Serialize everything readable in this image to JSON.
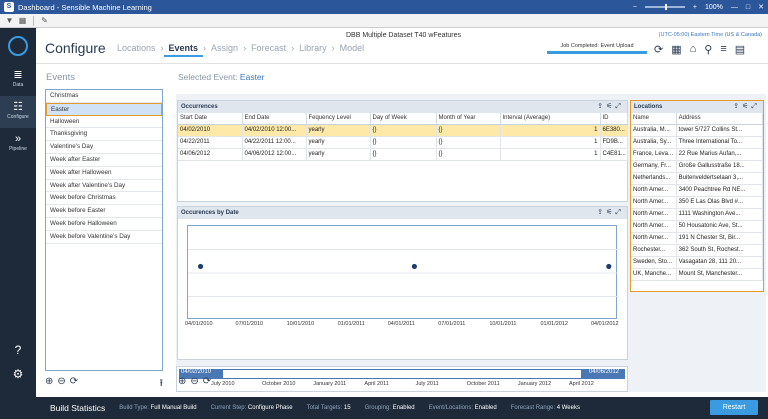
{
  "window": {
    "title": "Dashboard - Sensible Machine Learning",
    "zoom": "100%",
    "controls": [
      "—",
      "□",
      "✕"
    ]
  },
  "toolbar": {
    "icons": [
      "filter-icon",
      "grid-icon",
      "edit-icon"
    ]
  },
  "rail": {
    "items": [
      {
        "label": "Data",
        "icon": "database-icon",
        "glyph": "≣"
      },
      {
        "label": "Configure",
        "icon": "sliders-icon",
        "glyph": "☷"
      },
      {
        "label": "Pipeline",
        "icon": "chevrons-right-icon",
        "glyph": "»"
      }
    ],
    "help_glyph": "?",
    "settings_glyph": "⚙"
  },
  "header": {
    "page_title": "Configure",
    "crumbs": [
      "Locations",
      "Events",
      "Assign",
      "Forecast",
      "Library",
      "Model"
    ],
    "active_crumb": "Events",
    "dataset": "DBB Multiple Dataset T40 wFeatures",
    "job_status": "Job Completed: Event Upload",
    "timezone": "(UTC-05:00) Eastern Time (US & Canada)"
  },
  "events": {
    "title": "Events",
    "items": [
      "Christmas",
      "Easter",
      "Halloween",
      "Thanksgiving",
      "Valentine's Day",
      "Week after Easter",
      "Week after Halloween",
      "Week after Valentine's Day",
      "Week before Christmas",
      "Week before Easter",
      "Week before Halloween",
      "Week before Valentine's Day"
    ],
    "selected": "Easter"
  },
  "selected_event": {
    "label": "Selected Event:",
    "value": "Easter"
  },
  "occurrences": {
    "title": "Occurrences",
    "columns": [
      "Start Date",
      "End Date",
      "Fequency Level",
      "Day of Week",
      "Month of Year",
      "Interval (Average)",
      "ID"
    ],
    "rows": [
      [
        "04/02/2010",
        "04/02/2010 12:00...",
        "yearly",
        "{}",
        "{}",
        "1",
        "6E380..."
      ],
      [
        "04/22/2011",
        "04/22/2011 12:00...",
        "yearly",
        "{}",
        "{}",
        "1",
        "FD9B..."
      ],
      [
        "04/06/2012",
        "04/06/2012 12:00...",
        "yearly",
        "{}",
        "{}",
        "1",
        "C4E81..."
      ]
    ]
  },
  "locations": {
    "title": "Locations",
    "columns": [
      "Name",
      "Address"
    ],
    "rows": [
      [
        "Australia, M...",
        "tower 5/727 Collins St..."
      ],
      [
        "Australia, Sy...",
        "Three International To..."
      ],
      [
        "France, Leva...",
        "22 Rue Marius Aufan,..."
      ],
      [
        "Germany, Fr...",
        "Große Gallusstraße 18..."
      ],
      [
        "Netherlands...",
        "Buitenveldertselaan 3,..."
      ],
      [
        "North Amer...",
        "3400 Peachtree Rd NE..."
      ],
      [
        "North Amer...",
        "350 E Las Olas Blvd #..."
      ],
      [
        "North Amer...",
        "1111 Washington Ave..."
      ],
      [
        "North Amer...",
        "50 Housatonic Ave, St..."
      ],
      [
        "North Amer...",
        "191 N Chester St, Bir..."
      ],
      [
        "Rochester...",
        "362 South St, Rochest..."
      ],
      [
        "Sweden, Sto...",
        "Vasagatan 28, 111 20..."
      ],
      [
        "UK, Manche...",
        "Mount St, Manchester..."
      ]
    ]
  },
  "chart_data": {
    "type": "scatter",
    "title": "Occurences by Date",
    "x_tick_labels": [
      "04/01/2010",
      "07/01/2010",
      "10/01/2010",
      "01/01/2011",
      "04/01/2011",
      "07/01/2011",
      "10/01/2011",
      "01/01/2012",
      "04/01/2012"
    ],
    "points": [
      {
        "x": "04/02/2010",
        "y": 1
      },
      {
        "x": "04/22/2011",
        "y": 1
      },
      {
        "x": "04/06/2012",
        "y": 1
      }
    ],
    "grid": true
  },
  "timeline": {
    "start": "04/02/2010",
    "end": "04/06/2012",
    "labels": [
      "July 2010",
      "October 2010",
      "January 2011",
      "April 2011",
      "July 2011",
      "October 2011",
      "January 2012",
      "April 2012"
    ]
  },
  "footer": {
    "title": "Build Statistics",
    "stats": [
      {
        "key": "Build Type:",
        "value": "Full Manual Build"
      },
      {
        "key": "Current Step:",
        "value": "Configure Phase"
      },
      {
        "key": "Total Targets:",
        "value": "15"
      },
      {
        "key": "Grouping:",
        "value": "Enabled"
      },
      {
        "key": "Event/Locations:",
        "value": "Enabled"
      },
      {
        "key": "Forecast Range:",
        "value": "4 Weeks"
      }
    ],
    "restart_label": "Restart"
  },
  "colors": {
    "accent": "#3a9be0",
    "highlight": "#e49b2e",
    "rail": "#1e2a3a"
  }
}
